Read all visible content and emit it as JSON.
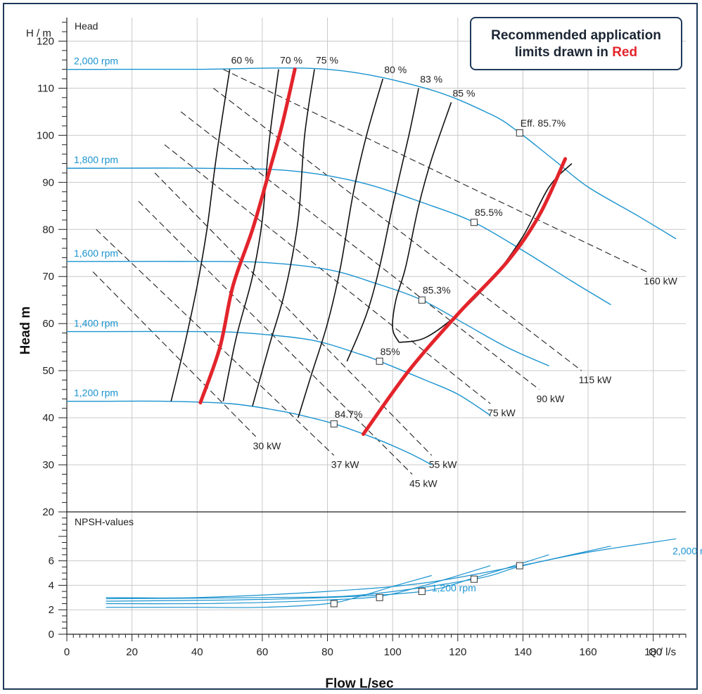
{
  "note": {
    "line1": "Recommended application",
    "line2": "limits drawn in",
    "highlight": "Red"
  },
  "colors": {
    "rpm_curve": "#1a93cf",
    "limit": "#e3242b",
    "iso": "#111111",
    "power": "#222222",
    "frame": "#1f3a5a"
  },
  "chart_data": [
    {
      "type": "line",
      "title": "Head",
      "ylabel": "Head m",
      "yunit_label": "H / m",
      "xlim": [
        0,
        190
      ],
      "ylim": [
        20,
        125
      ],
      "yticks": [
        20,
        30,
        40,
        50,
        60,
        70,
        80,
        90,
        100,
        110,
        120
      ],
      "grid": true,
      "series": [
        {
          "name": "2,000 rpm",
          "points": [
            [
              12,
              114
            ],
            [
              40,
              114
            ],
            [
              80,
              114
            ],
            [
              110,
              110
            ],
            [
              130,
              104.5
            ],
            [
              139,
              100.5
            ],
            [
              150,
              94.5
            ],
            [
              160,
              89
            ],
            [
              175,
              83
            ],
            [
              187,
              78
            ]
          ]
        },
        {
          "name": "1,800 rpm",
          "points": [
            [
              12,
              93
            ],
            [
              40,
              93
            ],
            [
              68,
              92.5
            ],
            [
              90,
              90
            ],
            [
              110,
              85.5
            ],
            [
              125,
              81.5
            ],
            [
              140,
              75.5
            ],
            [
              155,
              69
            ],
            [
              167,
              64
            ]
          ]
        },
        {
          "name": "1,600 rpm",
          "points": [
            [
              12,
              73.2
            ],
            [
              40,
              73.2
            ],
            [
              60,
              73
            ],
            [
              80,
              71.5
            ],
            [
              95,
              68.5
            ],
            [
              109,
              65
            ],
            [
              122,
              60
            ],
            [
              135,
              55
            ],
            [
              148,
              51
            ]
          ]
        },
        {
          "name": "1,400 rpm",
          "points": [
            [
              12,
              58.3
            ],
            [
              40,
              58.3
            ],
            [
              55,
              58
            ],
            [
              75,
              56.5
            ],
            [
              90,
              53.5
            ],
            [
              96,
              52
            ],
            [
              110,
              48
            ],
            [
              120,
              45
            ],
            [
              130,
              40.5
            ]
          ]
        },
        {
          "name": "1,200 rpm",
          "points": [
            [
              12,
              43.5
            ],
            [
              30,
              43.5
            ],
            [
              50,
              43
            ],
            [
              65,
              41.5
            ],
            [
              75,
              40
            ],
            [
              83,
              38.5
            ],
            [
              95,
              35.5
            ],
            [
              105,
              32.5
            ],
            [
              112,
              30
            ]
          ]
        }
      ],
      "efficiency_curves": [
        {
          "label": "60 %",
          "points": [
            [
              32,
              43.5
            ],
            [
              36,
              55
            ],
            [
              40,
              68
            ],
            [
              43,
              80
            ],
            [
              46,
              96
            ],
            [
              50,
              114
            ]
          ]
        },
        {
          "label": "70 %",
          "points": [
            [
              48,
              43.5
            ],
            [
              52,
              57
            ],
            [
              57,
              70
            ],
            [
              60,
              82
            ],
            [
              62,
              98
            ],
            [
              65,
              114
            ]
          ]
        },
        {
          "label": "75 %",
          "points": [
            [
              57,
              42.5
            ],
            [
              62,
              55
            ],
            [
              67,
              67
            ],
            [
              71,
              82
            ],
            [
              73,
              100
            ],
            [
              76,
              114
            ]
          ]
        },
        {
          "label": "80 %",
          "points": [
            [
              71,
              40
            ],
            [
              75,
              49
            ],
            [
              80,
              60
            ],
            [
              84,
              72
            ],
            [
              88,
              88
            ],
            [
              92,
              100
            ],
            [
              97,
              112
            ]
          ]
        },
        {
          "label": "83 %",
          "points": [
            [
              86,
              52
            ],
            [
              92,
              62
            ],
            [
              96,
              72
            ],
            [
              100,
              85
            ],
            [
              105,
              100
            ],
            [
              108,
              110
            ]
          ]
        },
        {
          "label": "85 %",
          "points": [
            [
              102,
              56
            ],
            [
              100,
              59
            ],
            [
              101,
              65
            ],
            [
              104,
              72
            ],
            [
              108,
              85
            ],
            [
              112,
              95
            ],
            [
              118,
              107
            ]
          ]
        },
        {
          "label": "",
          "points": [
            [
              102,
              56
            ],
            [
              110,
              57
            ],
            [
              120,
              62
            ],
            [
              130,
              69
            ],
            [
              140,
              78.5
            ],
            [
              148,
              89
            ],
            [
              155,
              94
            ]
          ]
        }
      ],
      "power_lines": [
        {
          "label": "160 kW",
          "from": [
            48,
            114
          ],
          "to": [
            178,
            71
          ]
        },
        {
          "label": "115 kW",
          "from": [
            45,
            110
          ],
          "to": [
            158,
            50
          ]
        },
        {
          "label": "90 kW",
          "from": [
            35,
            105
          ],
          "to": [
            145,
            46
          ]
        },
        {
          "label": "75 kW",
          "from": [
            30,
            98
          ],
          "to": [
            130,
            43
          ]
        },
        {
          "label": "55 kW",
          "from": [
            27,
            92
          ],
          "to": [
            112,
            32
          ]
        },
        {
          "label": "45 kW",
          "from": [
            22,
            86
          ],
          "to": [
            106,
            28
          ]
        },
        {
          "label": "37 kW",
          "from": [
            9,
            80
          ],
          "to": [
            82,
            32
          ]
        },
        {
          "label": "30 kW",
          "from": [
            8,
            71
          ],
          "to": [
            58,
            36
          ]
        }
      ],
      "bep_points": [
        {
          "label": "Eff.  85.7%",
          "x": 139,
          "y": 100.5
        },
        {
          "label": "85.5%",
          "x": 125,
          "y": 81.5
        },
        {
          "label": "85.3%",
          "x": 109,
          "y": 65
        },
        {
          "label": "85%",
          "x": 96,
          "y": 52
        },
        {
          "label": "84.7%",
          "x": 82,
          "y": 38.7
        }
      ],
      "limit_lines": [
        {
          "points": [
            [
              41,
              43.2
            ],
            [
              47,
              55
            ],
            [
              51,
              68
            ],
            [
              57,
              80
            ],
            [
              62,
              92
            ],
            [
              66,
              102
            ],
            [
              70,
              114
            ]
          ]
        },
        {
          "points": [
            [
              91,
              36.5
            ],
            [
              105,
              50
            ],
            [
              120,
              62
            ],
            [
              135,
              73
            ],
            [
              145,
              83
            ],
            [
              153,
              95
            ]
          ]
        }
      ]
    },
    {
      "type": "line",
      "title": "NPSH-values",
      "xlabel": "Flow L/sec",
      "xunit_label": "Q  / l/s",
      "xlim": [
        0,
        190
      ],
      "ylim": [
        0,
        10
      ],
      "xticks": [
        0,
        20,
        40,
        60,
        80,
        100,
        120,
        140,
        160,
        180
      ],
      "yticks": [
        0,
        2,
        4,
        6
      ],
      "series": [
        {
          "name": "1,200 rpm",
          "points": [
            [
              12,
              2.2
            ],
            [
              40,
              2.2
            ],
            [
              60,
              2.2
            ],
            [
              80,
              2.5
            ],
            [
              90,
              3.1
            ],
            [
              100,
              3.9
            ],
            [
              112,
              4.8
            ]
          ]
        },
        {
          "name": "1,400 rpm",
          "points": [
            [
              12,
              2.5
            ],
            [
              40,
              2.5
            ],
            [
              60,
              2.6
            ],
            [
              80,
              2.8
            ],
            [
              96,
              3.1
            ],
            [
              110,
              4
            ],
            [
              130,
              5.6
            ]
          ]
        },
        {
          "name": "1,600 rpm",
          "points": [
            [
              12,
              2.7
            ],
            [
              50,
              2.8
            ],
            [
              80,
              3
            ],
            [
              109,
              3.5
            ],
            [
              125,
              4.6
            ],
            [
              148,
              6.5
            ]
          ]
        },
        {
          "name": "1,800 rpm",
          "points": [
            [
              12,
              2.9
            ],
            [
              60,
              3
            ],
            [
              90,
              3.2
            ],
            [
              125,
              4.5
            ],
            [
              140,
              5.6
            ],
            [
              167,
              7.2
            ]
          ]
        },
        {
          "name": "2,000 rpm",
          "points": [
            [
              12,
              3
            ],
            [
              40,
              3
            ],
            [
              80,
              3.5
            ],
            [
              110,
              4.2
            ],
            [
              139,
              5.6
            ],
            [
              160,
              6.7
            ],
            [
              187,
              7.8
            ]
          ]
        }
      ],
      "bep_points": [
        {
          "x": 82,
          "y": 2.5
        },
        {
          "x": 96,
          "y": 3
        },
        {
          "x": 109,
          "y": 3.5
        },
        {
          "x": 125,
          "y": 4.5
        },
        {
          "x": 139,
          "y": 5.6
        }
      ],
      "label_1200_position": [
        112,
        3.5
      ]
    }
  ]
}
